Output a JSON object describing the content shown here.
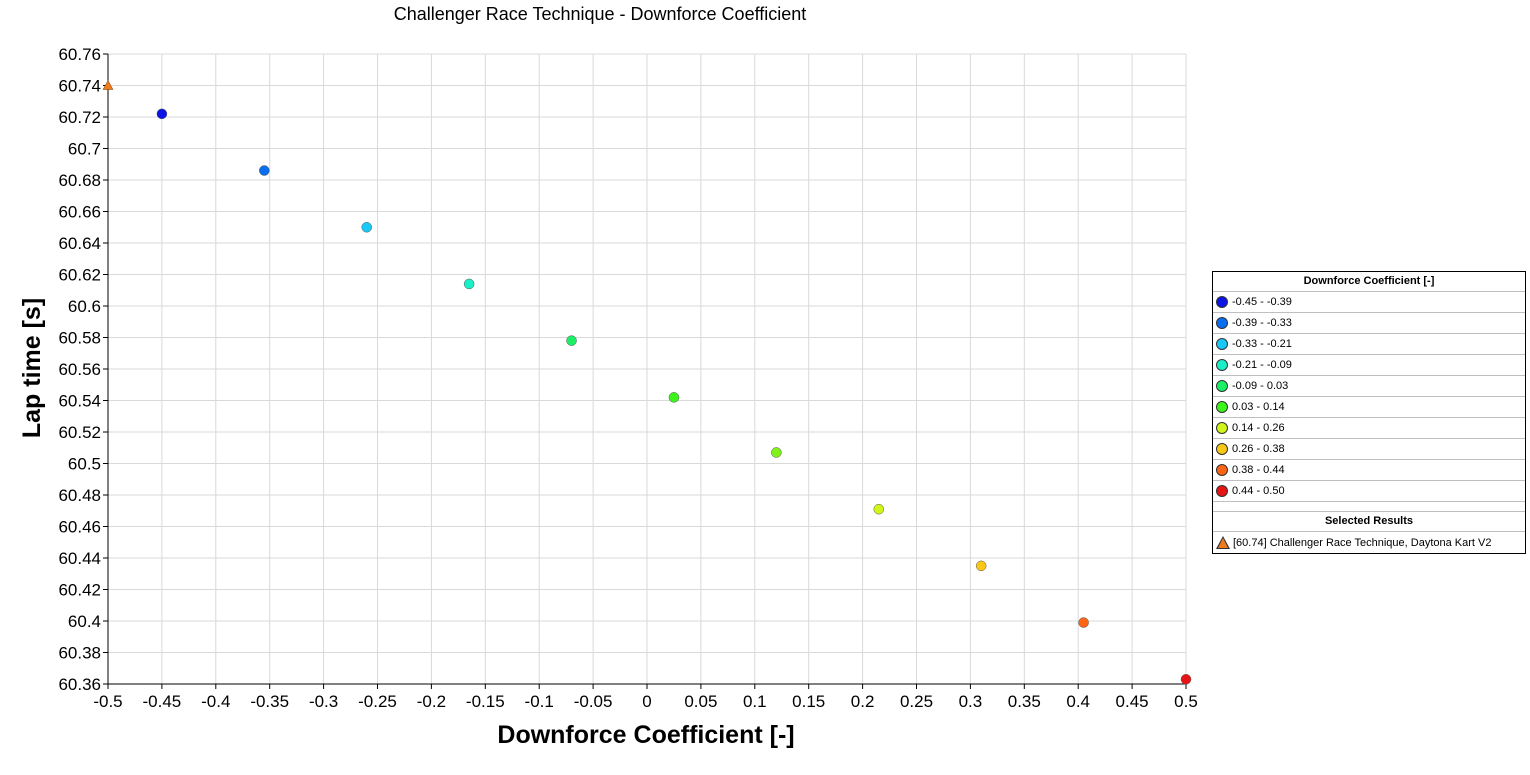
{
  "chart_data": {
    "type": "scatter",
    "title": "Challenger Race Technique - Downforce Coefficient",
    "xlabel": "Downforce Coefficient [-]",
    "ylabel": "Lap time [s]",
    "xlim": [
      -0.5,
      0.5
    ],
    "ylim": [
      60.36,
      60.76
    ],
    "xticks": [
      "-0.5",
      "-0.45",
      "-0.4",
      "-0.35",
      "-0.3",
      "-0.25",
      "-0.2",
      "-0.15",
      "-0.1",
      "-0.05",
      "0",
      "0.05",
      "0.1",
      "0.15",
      "0.2",
      "0.25",
      "0.3",
      "0.35",
      "0.4",
      "0.45",
      "0.5"
    ],
    "yticks": [
      "60.36",
      "60.38",
      "60.4",
      "60.42",
      "60.44",
      "60.46",
      "60.48",
      "60.5",
      "60.52",
      "60.54",
      "60.56",
      "60.58",
      "60.6",
      "60.62",
      "60.64",
      "60.66",
      "60.68",
      "60.7",
      "60.72",
      "60.74",
      "60.76"
    ],
    "grid": true,
    "legend_position": "right",
    "points": [
      {
        "x": -0.45,
        "y": 60.722,
        "color": "#0a14e6"
      },
      {
        "x": -0.355,
        "y": 60.686,
        "color": "#0a6ef0"
      },
      {
        "x": -0.26,
        "y": 60.65,
        "color": "#19c8f5"
      },
      {
        "x": -0.165,
        "y": 60.614,
        "color": "#19f0c8"
      },
      {
        "x": -0.07,
        "y": 60.578,
        "color": "#19f064"
      },
      {
        "x": 0.025,
        "y": 60.542,
        "color": "#3cf519"
      },
      {
        "x": 0.12,
        "y": 60.507,
        "color": "#82f019"
      },
      {
        "x": 0.215,
        "y": 60.471,
        "color": "#d2f519"
      },
      {
        "x": 0.31,
        "y": 60.435,
        "color": "#fac814"
      },
      {
        "x": 0.405,
        "y": 60.399,
        "color": "#fa6414"
      },
      {
        "x": 0.5,
        "y": 60.363,
        "color": "#e61414"
      }
    ],
    "selected_point": {
      "x": -0.5,
      "y": 60.74,
      "color": "#f07b1a"
    }
  },
  "legend": {
    "title": "Downforce Coefficient [-]",
    "items": [
      {
        "label": "-0.45 - -0.39",
        "color": "#0a14e6"
      },
      {
        "label": "-0.39 - -0.33",
        "color": "#0a6ef0"
      },
      {
        "label": "-0.33 - -0.21",
        "color": "#19c8f5"
      },
      {
        "label": "-0.21 - -0.09",
        "color": "#19f0c8"
      },
      {
        "label": "-0.09 - 0.03",
        "color": "#19f064"
      },
      {
        "label": "0.03 - 0.14",
        "color": "#3cf519"
      },
      {
        "label": "0.14 - 0.26",
        "color": "#d2f519"
      },
      {
        "label": "0.26 - 0.38",
        "color": "#fac814"
      },
      {
        "label": "0.38 - 0.44",
        "color": "#fa6414"
      },
      {
        "label": "0.44 - 0.50",
        "color": "#e61414"
      }
    ],
    "selected_title": "Selected Results",
    "selected_label": "[60.74] Challenger Race Technique, Daytona Kart V2"
  }
}
